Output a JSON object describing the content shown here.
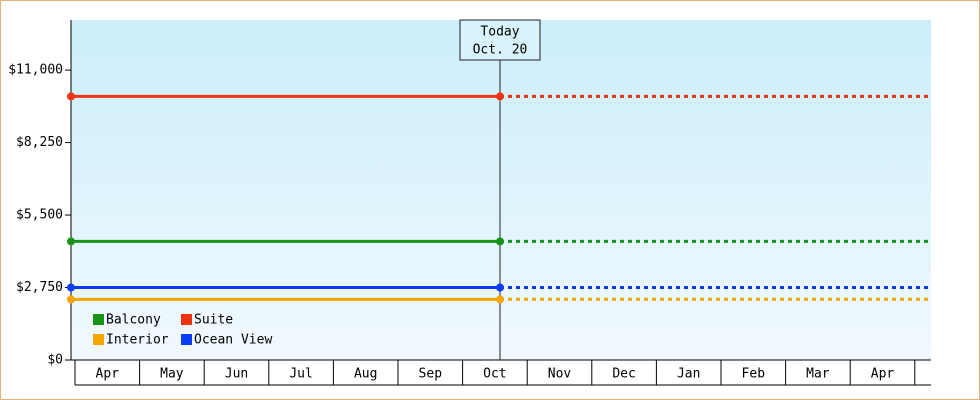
{
  "chart_data": {
    "type": "line",
    "categories": [
      "Apr",
      "May",
      "Jun",
      "Jul",
      "Aug",
      "Sep",
      "Oct",
      "Nov",
      "Dec",
      "Jan",
      "Feb",
      "Mar",
      "Apr"
    ],
    "today_label": [
      "Today",
      "Oct. 20"
    ],
    "ylim": [
      0,
      12900
    ],
    "yticks": [
      {
        "value": 0,
        "label": "$0"
      },
      {
        "value": 2750,
        "label": "$2,750"
      },
      {
        "value": 5500,
        "label": "$5,500"
      },
      {
        "value": 8250,
        "label": "$8,250"
      },
      {
        "value": 11000,
        "label": "$11,000"
      }
    ],
    "series": [
      {
        "name": "Balcony",
        "color": "#179317",
        "value": 4500
      },
      {
        "name": "Suite",
        "color": "#ee3311",
        "value": 10000
      },
      {
        "name": "Interior",
        "color": "#f5a500",
        "value": 2300
      },
      {
        "name": "Ocean View",
        "color": "#0b3ef2",
        "value": 2750
      }
    ],
    "legend": "bottom-left"
  }
}
